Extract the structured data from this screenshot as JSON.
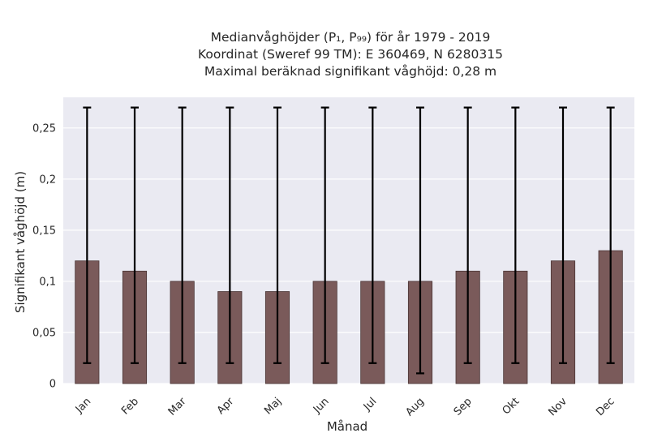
{
  "chart_data": {
    "type": "bar",
    "title_lines": [
      "Medianvåghöjder (P₁, P₉₉) för år 1979 - 2019",
      "Koordinat (Sweref 99 TM): E 360469, N 6280315",
      "Maximal beräknad signifikant våghöjd: 0,28 m"
    ],
    "xlabel": "Månad",
    "ylabel": "Signifikant våghöjd (m)",
    "categories": [
      "Jan",
      "Feb",
      "Mar",
      "Apr",
      "Maj",
      "Jun",
      "Jul",
      "Aug",
      "Sep",
      "Okt",
      "Nov",
      "Dec"
    ],
    "values": [
      0.12,
      0.11,
      0.1,
      0.09,
      0.09,
      0.1,
      0.1,
      0.1,
      0.11,
      0.11,
      0.12,
      0.13
    ],
    "err_low": [
      0.02,
      0.02,
      0.02,
      0.02,
      0.02,
      0.02,
      0.02,
      0.01,
      0.02,
      0.02,
      0.02,
      0.02
    ],
    "err_high": [
      0.27,
      0.27,
      0.27,
      0.27,
      0.27,
      0.27,
      0.27,
      0.27,
      0.27,
      0.27,
      0.27,
      0.27
    ],
    "ylim": [
      0,
      0.28
    ],
    "yticks": [
      0,
      0.05,
      0.1,
      0.15,
      0.2,
      0.25
    ],
    "ytick_labels": [
      "0",
      "0,05",
      "0,1",
      "0,15",
      "0,2",
      "0,25"
    ],
    "grid": true,
    "colors": {
      "bar": "#7a5a5a",
      "bar_edge": "#4a3535",
      "plot_bg": "#eaeaf2",
      "error_bar": "#000000",
      "grid": "#ffffff"
    }
  }
}
